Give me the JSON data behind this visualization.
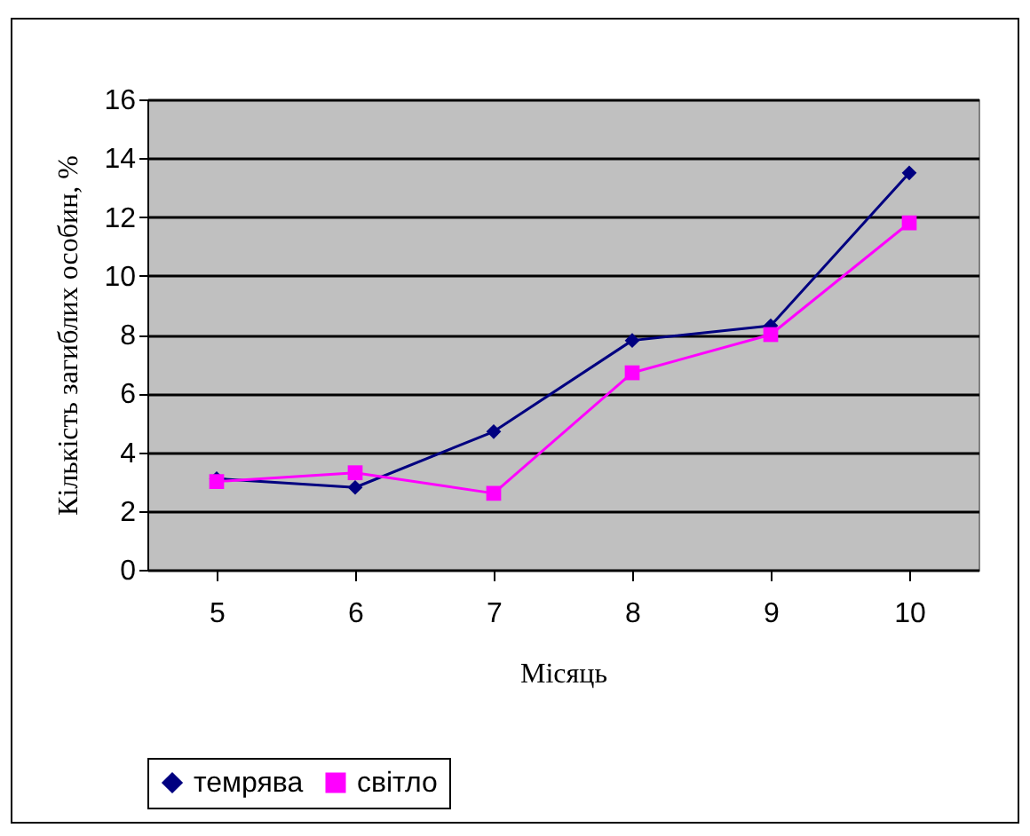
{
  "chart_data": {
    "type": "line",
    "xlabel": "Місяць",
    "ylabel": "Кількість загиблих особин, %",
    "categories": [
      "5",
      "6",
      "7",
      "8",
      "9",
      "10"
    ],
    "series": [
      {
        "name": "темрява",
        "color": "#000080",
        "marker": "diamond",
        "values": [
          3.1,
          2.8,
          4.7,
          7.8,
          8.3,
          13.5
        ]
      },
      {
        "name": "світло",
        "color": "#ff00ff",
        "marker": "square",
        "values": [
          3.0,
          3.3,
          2.6,
          6.7,
          8.0,
          11.8
        ]
      }
    ],
    "ylim": [
      0,
      16
    ],
    "yticks": [
      0,
      2,
      4,
      6,
      8,
      10,
      12,
      14,
      16
    ],
    "grid": "y",
    "legend": "bottom"
  }
}
